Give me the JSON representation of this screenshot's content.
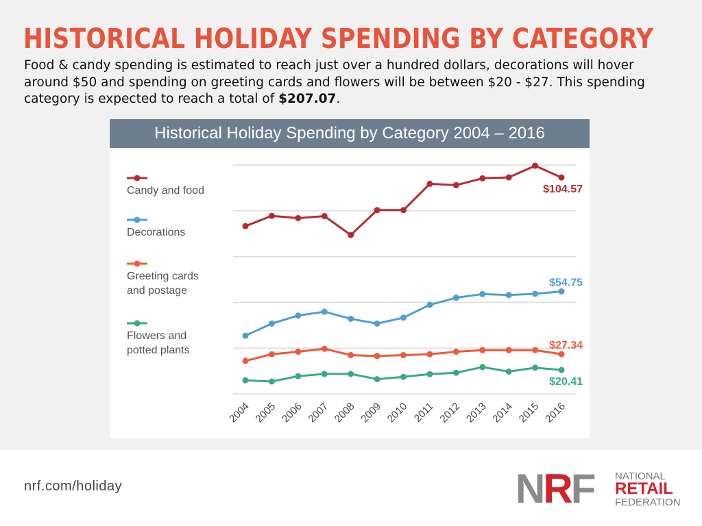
{
  "title": "HISTORICAL HOLIDAY SPENDING BY CATEGORY",
  "description": {
    "text": "Food & candy spending is estimated to reach just over a hundred dollars, decorations will hover around $50 and spending on greeting cards and flowers will be between $20 - $27. This spending category is expected to reach a total of ",
    "total": "$207.07",
    "end": "."
  },
  "footer": {
    "url": "nrf.com/holiday",
    "logo": {
      "mark": "NRF",
      "line1": "NATIONAL",
      "line2": "RETAIL",
      "line3": "FEDERATION"
    }
  },
  "chart_data": {
    "type": "line",
    "title": "Historical Holiday Spending by Category 2004 – 2016",
    "categories": [
      "2004",
      "2005",
      "2006",
      "2007",
      "2008",
      "2009",
      "2010",
      "2011",
      "2012",
      "2013",
      "2014",
      "2015",
      "2016"
    ],
    "ylim": [
      10,
      110
    ],
    "grid": true,
    "legend": "left",
    "series": [
      {
        "name": "Candy and food",
        "color": "#b72a33",
        "end_label": "$104.57",
        "values": [
          83.3,
          87.8,
          86.8,
          87.7,
          79.4,
          90.3,
          90.3,
          101.8,
          101.2,
          104.2,
          104.6,
          109.7,
          104.57
        ]
      },
      {
        "name": "Decorations",
        "color": "#4e9fd1",
        "end_label": "$54.75",
        "values": [
          35.4,
          40.7,
          44.2,
          45.9,
          42.8,
          40.7,
          43.3,
          48.9,
          52.0,
          53.6,
          53.2,
          53.7,
          54.75
        ]
      },
      {
        "name": "Greeting cards and postage",
        "color": "#ee5a3a",
        "end_label": "$27.34",
        "values": [
          24.4,
          27.3,
          28.4,
          29.7,
          26.9,
          26.5,
          26.9,
          27.3,
          28.4,
          29.1,
          29.1,
          29.1,
          27.34
        ]
      },
      {
        "name": "Flowers and potted plants",
        "color": "#3baa7e",
        "end_label": "$20.41",
        "values": [
          15.9,
          15.4,
          17.7,
          18.7,
          18.7,
          16.4,
          17.4,
          18.6,
          19.2,
          21.7,
          19.7,
          21.4,
          20.41
        ]
      }
    ],
    "legend_lines": [
      [
        "Candy and food"
      ],
      [
        "Decorations"
      ],
      [
        "Greeting cards",
        "and postage"
      ],
      [
        "Flowers and",
        "potted plants"
      ]
    ]
  }
}
